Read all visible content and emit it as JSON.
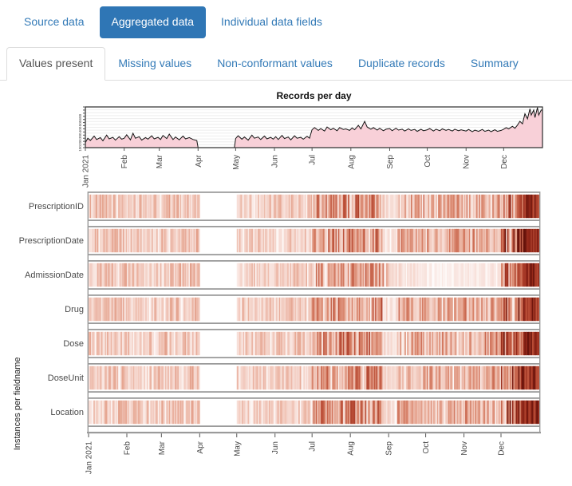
{
  "nav": {
    "items": [
      {
        "label": "Source data",
        "active": false
      },
      {
        "label": "Aggregated data",
        "active": true
      },
      {
        "label": "Individual data fields",
        "active": false
      }
    ]
  },
  "tabs": {
    "items": [
      {
        "label": "Values present",
        "active": true
      },
      {
        "label": "Missing values",
        "active": false
      },
      {
        "label": "Non-conformant values",
        "active": false
      },
      {
        "label": "Duplicate records",
        "active": false
      },
      {
        "label": "Summary",
        "active": false
      }
    ]
  },
  "colors": {
    "accent": "#337ab7",
    "pill_active_bg": "#2f76b5",
    "tab_border": "#dddddd",
    "active_tab_text": "#555555",
    "chart_border": "#2b2b2b",
    "gridline": "#ededed",
    "area_fill": "#f8d0d8",
    "area_line": "#151515",
    "frame_gray": "#9b9b9b",
    "axis_text": "#4a4a4a",
    "tick_color": "#555555",
    "heat_scale": [
      [
        0,
        "#ffffff"
      ],
      [
        0.18,
        "#f9e6e1"
      ],
      [
        0.35,
        "#f2cabe"
      ],
      [
        0.5,
        "#e6a793"
      ],
      [
        0.65,
        "#d67f66"
      ],
      [
        0.8,
        "#bb4f38"
      ],
      [
        0.9,
        "#96291a"
      ],
      [
        1,
        "#63110a"
      ]
    ]
  },
  "chart_data": [
    {
      "type": "area",
      "title": "Records per day",
      "x_axis": {
        "months": [
          "Jan 2021",
          "Feb",
          "Mar",
          "Apr",
          "May",
          "Jun",
          "Jul",
          "Aug",
          "Sep",
          "Oct",
          "Nov",
          "Dec"
        ],
        "month_start_days": [
          0,
          31,
          59,
          90,
          120,
          151,
          181,
          212,
          243,
          273,
          304,
          334
        ],
        "total_days": 365
      },
      "y_axis": {
        "ticks": [
          100,
          200,
          300,
          400,
          500,
          600
        ],
        "max": 650
      },
      "no_data_period": {
        "start_day": 90,
        "end_day": 120
      },
      "series": [
        [
          0,
          80
        ],
        [
          2,
          150
        ],
        [
          4,
          115
        ],
        [
          7,
          185
        ],
        [
          9,
          130
        ],
        [
          12,
          160
        ],
        [
          14,
          110
        ],
        [
          17,
          200
        ],
        [
          19,
          140
        ],
        [
          22,
          165
        ],
        [
          24,
          120
        ],
        [
          27,
          175
        ],
        [
          29,
          135
        ],
        [
          31,
          150
        ],
        [
          33,
          205
        ],
        [
          36,
          125
        ],
        [
          38,
          230
        ],
        [
          40,
          150
        ],
        [
          43,
          175
        ],
        [
          45,
          120
        ],
        [
          48,
          160
        ],
        [
          50,
          135
        ],
        [
          53,
          190
        ],
        [
          55,
          140
        ],
        [
          58,
          165
        ],
        [
          60,
          130
        ],
        [
          62,
          195
        ],
        [
          65,
          145
        ],
        [
          67,
          215
        ],
        [
          70,
          130
        ],
        [
          72,
          170
        ],
        [
          75,
          125
        ],
        [
          78,
          185
        ],
        [
          80,
          140
        ],
        [
          83,
          160
        ],
        [
          86,
          130
        ],
        [
          89,
          115
        ],
        [
          90,
          0
        ],
        [
          119,
          0
        ],
        [
          120,
          145
        ],
        [
          122,
          190
        ],
        [
          125,
          135
        ],
        [
          127,
          170
        ],
        [
          130,
          120
        ],
        [
          133,
          200
        ],
        [
          135,
          150
        ],
        [
          138,
          170
        ],
        [
          140,
          130
        ],
        [
          143,
          185
        ],
        [
          145,
          140
        ],
        [
          148,
          165
        ],
        [
          150,
          135
        ],
        [
          152,
          175
        ],
        [
          154,
          130
        ],
        [
          157,
          195
        ],
        [
          159,
          145
        ],
        [
          162,
          170
        ],
        [
          164,
          125
        ],
        [
          167,
          190
        ],
        [
          169,
          150
        ],
        [
          172,
          165
        ],
        [
          174,
          135
        ],
        [
          177,
          180
        ],
        [
          179,
          150
        ],
        [
          181,
          285
        ],
        [
          183,
          320
        ],
        [
          186,
          275
        ],
        [
          188,
          305
        ],
        [
          191,
          265
        ],
        [
          193,
          330
        ],
        [
          196,
          285
        ],
        [
          198,
          310
        ],
        [
          201,
          270
        ],
        [
          203,
          320
        ],
        [
          206,
          290
        ],
        [
          208,
          300
        ],
        [
          211,
          275
        ],
        [
          213,
          315
        ],
        [
          215,
          285
        ],
        [
          218,
          355
        ],
        [
          220,
          300
        ],
        [
          223,
          420
        ],
        [
          225,
          330
        ],
        [
          228,
          295
        ],
        [
          230,
          320
        ],
        [
          233,
          280
        ],
        [
          235,
          310
        ],
        [
          238,
          270
        ],
        [
          240,
          295
        ],
        [
          243,
          305
        ],
        [
          245,
          270
        ],
        [
          248,
          310
        ],
        [
          250,
          280
        ],
        [
          253,
          295
        ],
        [
          255,
          265
        ],
        [
          258,
          300
        ],
        [
          260,
          275
        ],
        [
          263,
          290
        ],
        [
          265,
          260
        ],
        [
          268,
          295
        ],
        [
          270,
          270
        ],
        [
          273,
          285
        ],
        [
          275,
          305
        ],
        [
          278,
          265
        ],
        [
          280,
          295
        ],
        [
          283,
          270
        ],
        [
          285,
          300
        ],
        [
          288,
          275
        ],
        [
          290,
          290
        ],
        [
          293,
          265
        ],
        [
          295,
          295
        ],
        [
          298,
          270
        ],
        [
          300,
          285
        ],
        [
          304,
          265
        ],
        [
          306,
          290
        ],
        [
          309,
          255
        ],
        [
          311,
          280
        ],
        [
          314,
          260
        ],
        [
          317,
          290
        ],
        [
          319,
          260
        ],
        [
          322,
          280
        ],
        [
          324,
          255
        ],
        [
          327,
          285
        ],
        [
          329,
          260
        ],
        [
          332,
          275
        ],
        [
          334,
          295
        ],
        [
          336,
          320
        ],
        [
          338,
          300
        ],
        [
          341,
          340
        ],
        [
          343,
          310
        ],
        [
          345,
          360
        ],
        [
          347,
          420
        ],
        [
          349,
          380
        ],
        [
          351,
          540
        ],
        [
          353,
          460
        ],
        [
          355,
          620
        ],
        [
          356,
          520
        ],
        [
          358,
          600
        ],
        [
          359,
          480
        ],
        [
          361,
          640
        ],
        [
          362,
          520
        ],
        [
          364,
          600
        ]
      ]
    },
    {
      "type": "heatmap",
      "ylabel": "Instances per fieldname",
      "rows": [
        "PrescriptionID",
        "PrescriptionDate",
        "AdmissionDate",
        "Drug",
        "Dose",
        "DoseUnit",
        "Location"
      ],
      "x_axis": {
        "months": [
          "Jan 2021",
          "Feb",
          "Mar",
          "Apr",
          "May",
          "Jun",
          "Jul",
          "Aug",
          "Sep",
          "Oct",
          "Nov",
          "Dec"
        ],
        "month_start_days": [
          0,
          31,
          59,
          90,
          120,
          151,
          181,
          212,
          243,
          273,
          304,
          334
        ],
        "total_days": 365
      },
      "no_data_period": {
        "start_day": 90,
        "end_day": 120
      },
      "light_band": {
        "start_day": 238,
        "end_day": 249,
        "except_row": "AdmissionDate"
      },
      "december_ramp_day": 345,
      "december_peak_day": 352,
      "monthly_intensity": {
        "PrescriptionID": [
          0.33,
          0.3,
          0.33,
          0,
          0.28,
          0.3,
          0.5,
          0.52,
          0.44,
          0.42,
          0.45,
          0.62
        ],
        "PrescriptionDate": [
          0.33,
          0.3,
          0.33,
          0,
          0.28,
          0.3,
          0.5,
          0.52,
          0.44,
          0.42,
          0.45,
          0.62
        ],
        "AdmissionDate": [
          0.33,
          0.3,
          0.33,
          0,
          0.28,
          0.3,
          0.44,
          0.46,
          0.2,
          0.13,
          0.14,
          0.55
        ],
        "Drug": [
          0.32,
          0.31,
          0.33,
          0,
          0.28,
          0.3,
          0.49,
          0.51,
          0.43,
          0.41,
          0.44,
          0.62
        ],
        "Dose": [
          0.33,
          0.3,
          0.32,
          0,
          0.29,
          0.3,
          0.5,
          0.51,
          0.44,
          0.42,
          0.45,
          0.62
        ],
        "DoseUnit": [
          0.32,
          0.3,
          0.33,
          0,
          0.28,
          0.31,
          0.5,
          0.52,
          0.43,
          0.42,
          0.44,
          0.62
        ],
        "Location": [
          0.33,
          0.31,
          0.33,
          0,
          0.28,
          0.3,
          0.49,
          0.52,
          0.44,
          0.41,
          0.45,
          0.62
        ]
      }
    }
  ]
}
